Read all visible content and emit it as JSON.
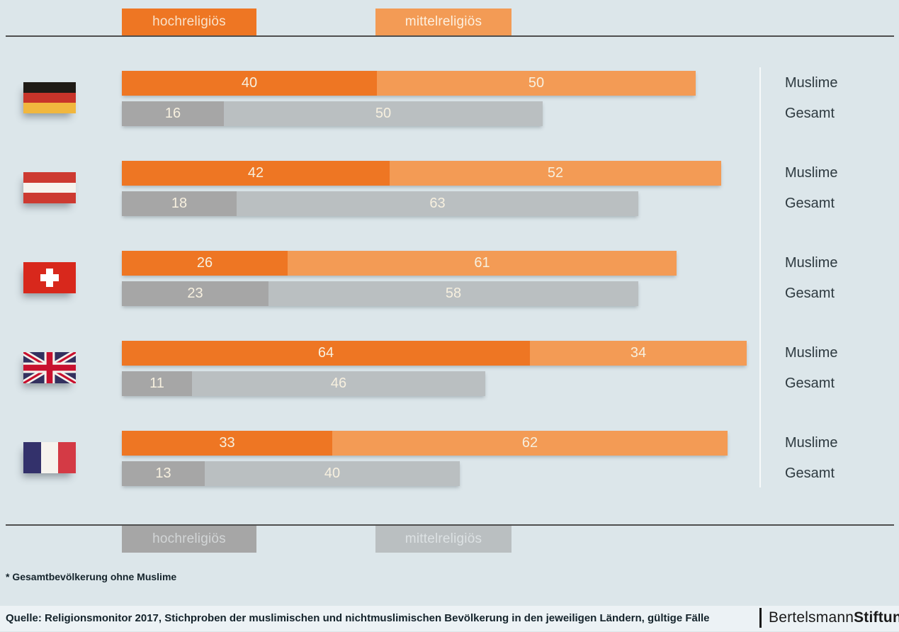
{
  "colors": {
    "background": "#dce6ea",
    "bottom_band": "#ecf2f5",
    "orange_dark": "#ee7623",
    "orange_light": "#f39b55",
    "gray_dark": "#a6a6a6",
    "gray_light": "#babfc1",
    "rule_line": "#4f4f4f",
    "bar_value_text": "#f7f0df",
    "legend_text_on_orange_dark": "#f9e2ca",
    "legend_text_on_orange_light": "#fdf0df",
    "legend_text_on_gray_dark": "#d2d5d6",
    "legend_text_on_gray_light": "#dce1e3"
  },
  "legend_top": {
    "hochreligioes_label": "hochreligiös",
    "mittelreligioes_label": "mittelreligiös"
  },
  "legend_bottom": {
    "hochreligioes_label": "hochreligiös",
    "mittelreligioes_label": "mittelreligiös"
  },
  "row_labels": {
    "muslime": "Muslime",
    "gesamt": "Gesamt"
  },
  "chart_data": {
    "type": "bar",
    "orientation": "horizontal",
    "unit": "percent",
    "segments": [
      "hochreligiös",
      "mittelreligiös"
    ],
    "series_per_country": [
      "Muslime",
      "Gesamt"
    ],
    "legend_position": "top and bottom",
    "axis": "none (values labeled on bars, ~9px per percent)",
    "countries": [
      {
        "country": "Germany",
        "muslime": {
          "hochreligioes": 40,
          "mittelreligioes": 50
        },
        "gesamt": {
          "hochreligioes": 16,
          "mittelreligioes": 50
        }
      },
      {
        "country": "Austria",
        "muslime": {
          "hochreligioes": 42,
          "mittelreligioes": 52
        },
        "gesamt": {
          "hochreligioes": 18,
          "mittelreligioes": 63
        }
      },
      {
        "country": "Switzerland",
        "muslime": {
          "hochreligioes": 26,
          "mittelreligioes": 61
        },
        "gesamt": {
          "hochreligioes": 23,
          "mittelreligioes": 58
        }
      },
      {
        "country": "United Kingdom",
        "muslime": {
          "hochreligioes": 64,
          "mittelreligioes": 34
        },
        "gesamt": {
          "hochreligioes": 11,
          "mittelreligioes": 46
        }
      },
      {
        "country": "France",
        "muslime": {
          "hochreligioes": 33,
          "mittelreligioes": 62
        },
        "gesamt": {
          "hochreligioes": 13,
          "mittelreligioes": 40
        }
      }
    ]
  },
  "footnote": "* Gesamtbevölkerung ohne Muslime",
  "source": "Quelle: Religionsmonitor 2017, Stichproben der muslimischen und nichtmuslimischen Bevölkerung in den jeweiligen Ländern, gültige Fälle",
  "logo": {
    "name_regular": "Bertelsmann",
    "name_bold": "Stiftung"
  }
}
